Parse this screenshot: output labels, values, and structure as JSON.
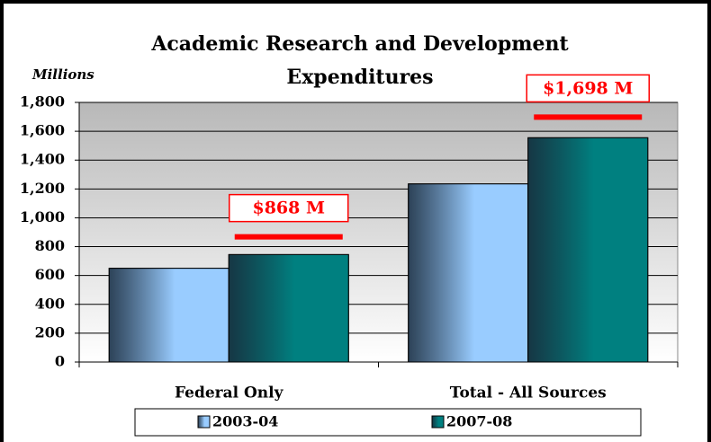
{
  "chart_data": {
    "type": "bar",
    "title": "Academic Research and Development Expenditures",
    "y_axis_label": "Millions",
    "categories": [
      "Federal Only",
      "Total - All Sources"
    ],
    "series": [
      {
        "name": "2003-04",
        "color": "#99ccff",
        "values": [
          650,
          1235
        ]
      },
      {
        "name": "2007-08",
        "color": "#008080",
        "values": [
          745,
          1555
        ]
      }
    ],
    "annotations": [
      {
        "label": "$868 M",
        "value": 868
      },
      {
        "label": "$1,698 M",
        "value": 1698
      }
    ],
    "ylim": [
      0,
      1800
    ],
    "yticks": [
      0,
      200,
      400,
      600,
      800,
      {
        "value": 1000,
        "label": "1,000"
      },
      {
        "value": 1200,
        "label": "1,200"
      },
      {
        "value": 1400,
        "label": "1,400"
      },
      {
        "value": 1600,
        "label": "1,600"
      },
      {
        "value": 1800,
        "label": "1,800"
      }
    ],
    "grid": true,
    "legend": "bottom"
  }
}
